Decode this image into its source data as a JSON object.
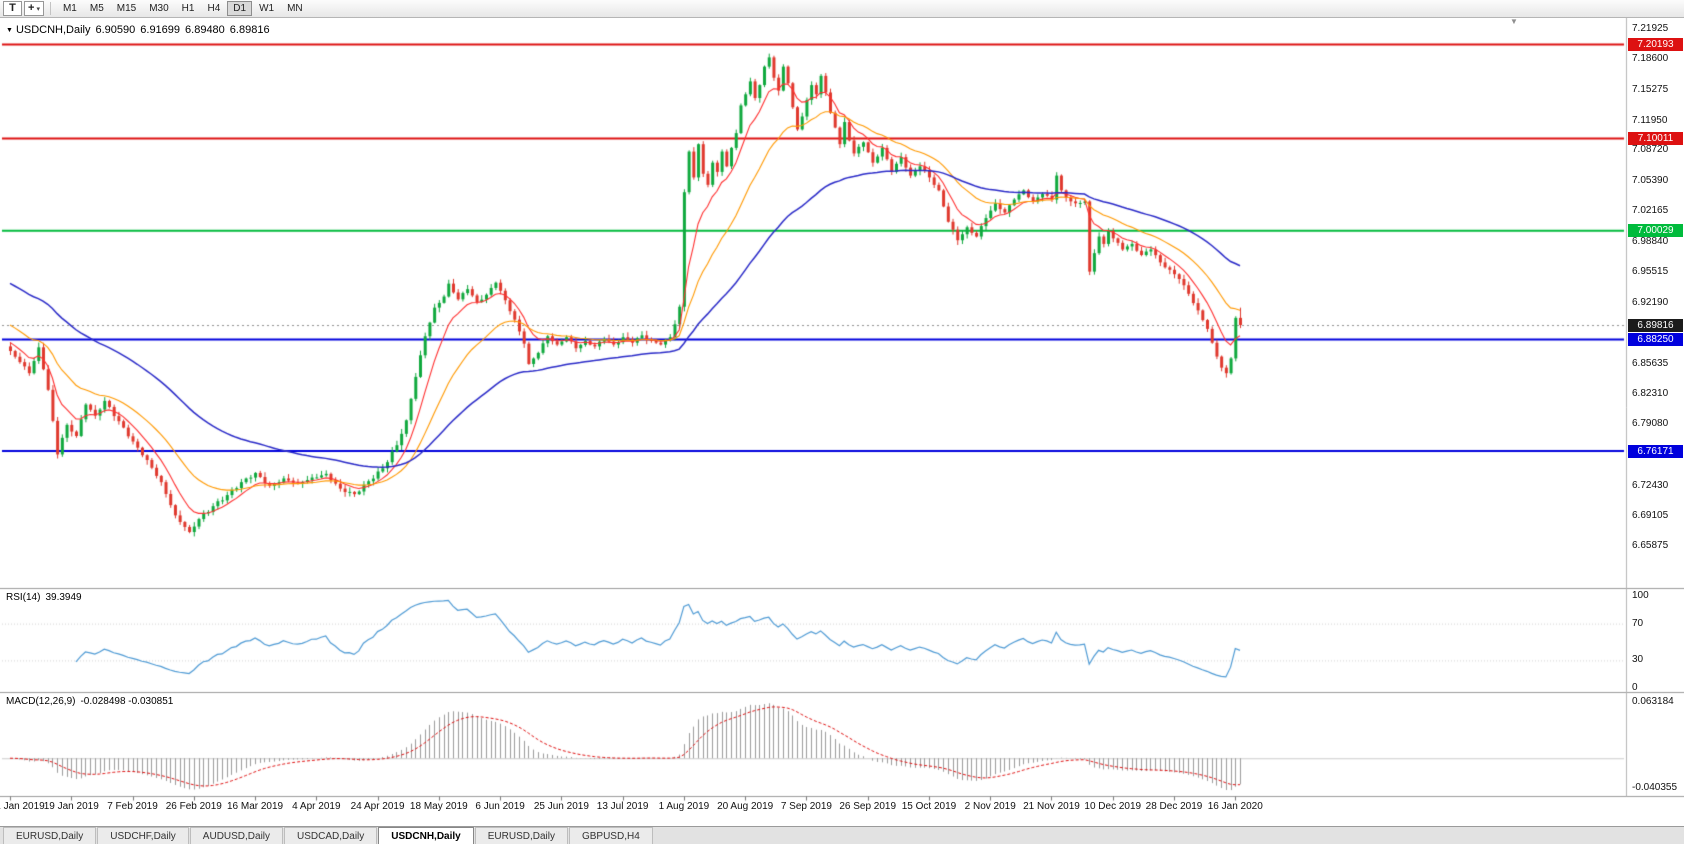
{
  "toolbar": {
    "template_button_label": "T",
    "cursor_button": {
      "icon": "crosshair",
      "glyph": "+",
      "caret": "▾"
    },
    "timeframes": [
      "M1",
      "M5",
      "M15",
      "M30",
      "H1",
      "H4",
      "D1",
      "W1",
      "MN"
    ],
    "active_timeframe": "D1"
  },
  "chart_window": {
    "dropdown_glyph": "▼",
    "shift_marker_glyph": "▼"
  },
  "chart_data": {
    "type": "candlestick",
    "symbol": "USDCNH",
    "timeframe": "Daily",
    "title": {
      "symbol_period": "USDCNH,Daily",
      "open": "6.90590",
      "high": "6.91699",
      "low": "6.89480",
      "close": "6.89816"
    },
    "bar_count": 262,
    "y_range": [
      6.6177,
      7.222
    ],
    "y_ticks": [
      "7.21925",
      "7.18600",
      "7.15275",
      "7.11950",
      "7.08720",
      "7.05390",
      "7.02165",
      "6.98840",
      "6.95515",
      "6.92190",
      "6.85635",
      "6.82310",
      "6.79080",
      "6.75755",
      "6.72430",
      "6.69105",
      "6.65875"
    ],
    "x_labels": [
      "1 Jan 2019",
      "19 Jan 2019",
      "7 Feb 2019",
      "26 Feb 2019",
      "16 Mar 2019",
      "4 Apr 2019",
      "24 Apr 2019",
      "18 May 2019",
      "6 Jun 2019",
      "25 Jun 2019",
      "13 Jul 2019",
      "1 Aug 2019",
      "20 Aug 2019",
      "7 Sep 2019",
      "26 Sep 2019",
      "15 Oct 2019",
      "2 Nov 2019",
      "21 Nov 2019",
      "10 Dec 2019",
      "28 Dec 2019",
      "16 Jan 2020"
    ],
    "x_label_every": 13,
    "horizontal_levels": [
      {
        "price": 7.20193,
        "label": "7.20193",
        "color": "#dd1111"
      },
      {
        "price": 7.10011,
        "label": "7.10011",
        "color": "#dd1111"
      },
      {
        "price": 7.00029,
        "label": "7.00029",
        "color": "#00bb3c"
      },
      {
        "price": 6.8825,
        "label": "6.88250",
        "color": "#0000dd"
      },
      {
        "price": 6.76171,
        "label": "6.76171",
        "color": "#0000dd"
      }
    ],
    "current_price": {
      "price": 6.89816,
      "label": "6.89816",
      "badge_color": "#1b1b1b",
      "line_color": "#909090"
    },
    "candles": {
      "up_color": "#10a93e",
      "down_color": "#e0392e",
      "close_anchors": [
        [
          0,
          6.87
        ],
        [
          2,
          6.858
        ],
        [
          4,
          6.846
        ],
        [
          6,
          6.874
        ],
        [
          8,
          6.828
        ],
        [
          10,
          6.758
        ],
        [
          11,
          6.776
        ],
        [
          12,
          6.79
        ],
        [
          14,
          6.778
        ],
        [
          16,
          6.812
        ],
        [
          18,
          6.8
        ],
        [
          20,
          6.816
        ],
        [
          23,
          6.794
        ],
        [
          26,
          6.772
        ],
        [
          29,
          6.752
        ],
        [
          32,
          6.728
        ],
        [
          35,
          6.692
        ],
        [
          38,
          6.674
        ],
        [
          40,
          6.688
        ],
        [
          43,
          6.702
        ],
        [
          46,
          6.714
        ],
        [
          49,
          6.728
        ],
        [
          52,
          6.738
        ],
        [
          55,
          6.724
        ],
        [
          58,
          6.732
        ],
        [
          61,
          6.727
        ],
        [
          64,
          6.733
        ],
        [
          67,
          6.737
        ],
        [
          70,
          6.721
        ],
        [
          73,
          6.715
        ],
        [
          76,
          6.729
        ],
        [
          79,
          6.743
        ],
        [
          82,
          6.768
        ],
        [
          84,
          6.795
        ],
        [
          86,
          6.842
        ],
        [
          88,
          6.886
        ],
        [
          90,
          6.917
        ],
        [
          92,
          6.929
        ],
        [
          93,
          6.943
        ],
        [
          95,
          6.926
        ],
        [
          97,
          6.937
        ],
        [
          99,
          6.923
        ],
        [
          101,
          6.931
        ],
        [
          103,
          6.944
        ],
        [
          105,
          6.925
        ],
        [
          107,
          6.904
        ],
        [
          109,
          6.878
        ],
        [
          110,
          6.856
        ],
        [
          112,
          6.868
        ],
        [
          114,
          6.886
        ],
        [
          116,
          6.877
        ],
        [
          118,
          6.885
        ],
        [
          120,
          6.873
        ],
        [
          122,
          6.881
        ],
        [
          124,
          6.875
        ],
        [
          126,
          6.883
        ],
        [
          128,
          6.877
        ],
        [
          130,
          6.885
        ],
        [
          132,
          6.879
        ],
        [
          134,
          6.887
        ],
        [
          136,
          6.881
        ],
        [
          138,
          6.877
        ],
        [
          140,
          6.885
        ],
        [
          141,
          6.899
        ],
        [
          142,
          6.918
        ],
        [
          143,
          7.042
        ],
        [
          144,
          7.086
        ],
        [
          145,
          7.058
        ],
        [
          146,
          7.094
        ],
        [
          147,
          7.062
        ],
        [
          148,
          7.05
        ],
        [
          149,
          7.074
        ],
        [
          150,
          7.064
        ],
        [
          151,
          7.086
        ],
        [
          152,
          7.07
        ],
        [
          153,
          7.09
        ],
        [
          154,
          7.106
        ],
        [
          155,
          7.136
        ],
        [
          156,
          7.148
        ],
        [
          157,
          7.162
        ],
        [
          158,
          7.144
        ],
        [
          159,
          7.158
        ],
        [
          160,
          7.178
        ],
        [
          161,
          7.188
        ],
        [
          162,
          7.166
        ],
        [
          163,
          7.152
        ],
        [
          164,
          7.178
        ],
        [
          165,
          7.16
        ],
        [
          166,
          7.134
        ],
        [
          167,
          7.11
        ],
        [
          168,
          7.124
        ],
        [
          169,
          7.142
        ],
        [
          170,
          7.158
        ],
        [
          171,
          7.148
        ],
        [
          172,
          7.168
        ],
        [
          173,
          7.15
        ],
        [
          174,
          7.128
        ],
        [
          175,
          7.112
        ],
        [
          176,
          7.094
        ],
        [
          177,
          7.118
        ],
        [
          178,
          7.098
        ],
        [
          179,
          7.084
        ],
        [
          181,
          7.096
        ],
        [
          183,
          7.074
        ],
        [
          185,
          7.09
        ],
        [
          187,
          7.064
        ],
        [
          189,
          7.08
        ],
        [
          191,
          7.06
        ],
        [
          193,
          7.07
        ],
        [
          195,
          7.058
        ],
        [
          197,
          7.044
        ],
        [
          199,
          7.01
        ],
        [
          201,
          6.99
        ],
        [
          203,
          7.004
        ],
        [
          205,
          6.994
        ],
        [
          207,
          7.014
        ],
        [
          209,
          7.03
        ],
        [
          211,
          7.02
        ],
        [
          213,
          7.034
        ],
        [
          215,
          7.044
        ],
        [
          217,
          7.032
        ],
        [
          219,
          7.04
        ],
        [
          221,
          7.034
        ],
        [
          222,
          7.06
        ],
        [
          223,
          7.044
        ],
        [
          224,
          7.036
        ],
        [
          226,
          7.03
        ],
        [
          228,
          7.032
        ],
        [
          229,
          6.956
        ],
        [
          230,
          6.976
        ],
        [
          231,
          6.994
        ],
        [
          232,
          6.986
        ],
        [
          233,
          7.0
        ],
        [
          234,
          6.992
        ],
        [
          236,
          6.98
        ],
        [
          238,
          6.986
        ],
        [
          240,
          6.974
        ],
        [
          242,
          6.98
        ],
        [
          244,
          6.966
        ],
        [
          246,
          6.958
        ],
        [
          248,
          6.948
        ],
        [
          250,
          6.932
        ],
        [
          252,
          6.914
        ],
        [
          254,
          6.894
        ],
        [
          255,
          6.879
        ],
        [
          256,
          6.864
        ],
        [
          257,
          6.852
        ],
        [
          258,
          6.846
        ],
        [
          259,
          6.862
        ],
        [
          260,
          6.9059
        ],
        [
          261,
          6.89816
        ]
      ],
      "last_candle": {
        "open": 6.9059,
        "high": 6.91699,
        "low": 6.8948,
        "close": 6.89816
      }
    },
    "moving_averages": [
      {
        "period": 8,
        "color": "#ff3030",
        "seed": 6.882
      },
      {
        "period": 21,
        "color": "#ff9900",
        "seed": 6.901
      },
      {
        "period": 55,
        "color": "#2a2ac8",
        "seed": 6.946
      }
    ],
    "indicators": {
      "rsi": {
        "name": "RSI(14)",
        "period": 14,
        "current_value": "39.3949",
        "axis_labels": [
          "100",
          "70",
          "30",
          "0"
        ],
        "axis_values": [
          100,
          70,
          30,
          0
        ],
        "levels": [
          70,
          30
        ],
        "line_color": "#4f9bd5"
      },
      "macd": {
        "name": "MACD(12,26,9)",
        "fast": 12,
        "slow": 26,
        "signal": 9,
        "current_values": "-0.028498 -0.030851",
        "axis_top": "0.063184",
        "axis_bottom": "-0.040355",
        "histogram_color": "#9b9b9b",
        "signal_color": "#e01010"
      }
    }
  },
  "tabs": [
    {
      "label": "EURUSD,Daily",
      "active": false
    },
    {
      "label": "USDCHF,Daily",
      "active": false
    },
    {
      "label": "AUDUSD,Daily",
      "active": false
    },
    {
      "label": "USDCAD,Daily",
      "active": false
    },
    {
      "label": "USDCNH,Daily",
      "active": true
    },
    {
      "label": "EURUSD,Daily",
      "active": false
    },
    {
      "label": "GBPUSD,H4",
      "active": false
    }
  ]
}
